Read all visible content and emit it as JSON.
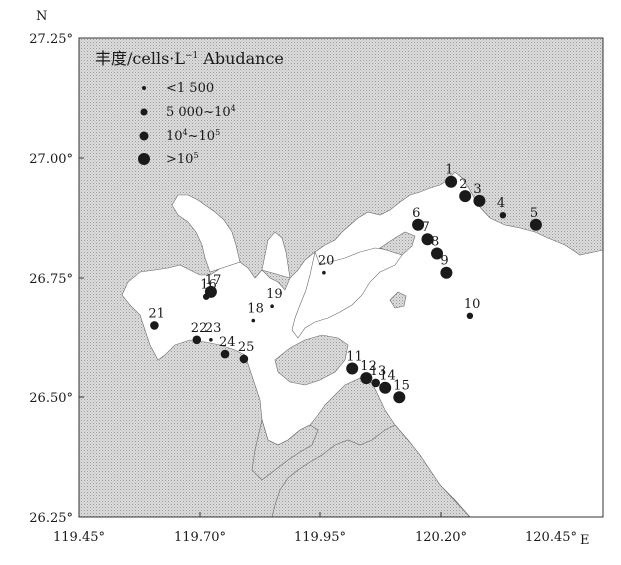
{
  "compass": {
    "north": "N",
    "east": "E"
  },
  "axes": {
    "lat_ticks": [
      "27.25°",
      "27.00°",
      "26.75°",
      "26.50°",
      "26.25°"
    ],
    "lon_ticks": [
      "119.45°",
      "119.70°",
      "119.95°",
      "120.20°",
      "120.45°"
    ]
  },
  "legend": {
    "title_cn": "丰度",
    "title_unit": "/cells·L",
    "title_sup": "−1",
    "title_en": "Abudance",
    "items": [
      {
        "label": "<1 500"
      },
      {
        "label": "5 000~10",
        "sup": "4"
      },
      {
        "label": "10",
        "sup": "4",
        "label2": "~10",
        "sup2": "5"
      },
      {
        "label": ">10",
        "sup": "5"
      }
    ]
  },
  "stations": [
    {
      "id": "1",
      "lon": 120.24,
      "lat": 26.95,
      "level": 3
    },
    {
      "id": "2",
      "lon": 120.27,
      "lat": 26.92,
      "level": 3
    },
    {
      "id": "3",
      "lon": 120.3,
      "lat": 26.91,
      "level": 3
    },
    {
      "id": "4",
      "lon": 120.35,
      "lat": 26.88,
      "level": 1
    },
    {
      "id": "5",
      "lon": 120.42,
      "lat": 26.86,
      "level": 3
    },
    {
      "id": "6",
      "lon": 120.17,
      "lat": 26.86,
      "level": 3
    },
    {
      "id": "7",
      "lon": 120.19,
      "lat": 26.83,
      "level": 3
    },
    {
      "id": "8",
      "lon": 120.21,
      "lat": 26.8,
      "level": 3
    },
    {
      "id": "9",
      "lon": 120.23,
      "lat": 26.76,
      "level": 3
    },
    {
      "id": "10",
      "lon": 120.28,
      "lat": 26.67,
      "level": 1
    },
    {
      "id": "11",
      "lon": 120.03,
      "lat": 26.56,
      "level": 3
    },
    {
      "id": "12",
      "lon": 120.06,
      "lat": 26.54,
      "level": 3
    },
    {
      "id": "13",
      "lon": 120.08,
      "lat": 26.53,
      "level": 2
    },
    {
      "id": "14",
      "lon": 120.1,
      "lat": 26.52,
      "level": 3
    },
    {
      "id": "15",
      "lon": 120.13,
      "lat": 26.5,
      "level": 3
    },
    {
      "id": "16",
      "lon": 119.72,
      "lat": 26.71,
      "level": 1
    },
    {
      "id": "17",
      "lon": 119.73,
      "lat": 26.72,
      "level": 3
    },
    {
      "id": "18",
      "lon": 119.82,
      "lat": 26.66,
      "level": 0
    },
    {
      "id": "19",
      "lon": 119.86,
      "lat": 26.69,
      "level": 0
    },
    {
      "id": "20",
      "lon": 119.97,
      "lat": 26.76,
      "level": 0
    },
    {
      "id": "21",
      "lon": 119.61,
      "lat": 26.65,
      "level": 2
    },
    {
      "id": "22",
      "lon": 119.7,
      "lat": 26.62,
      "level": 2
    },
    {
      "id": "23",
      "lon": 119.73,
      "lat": 26.62,
      "level": 0
    },
    {
      "id": "24",
      "lon": 119.76,
      "lat": 26.59,
      "level": 2
    },
    {
      "id": "25",
      "lon": 119.8,
      "lat": 26.58,
      "level": 2
    }
  ],
  "colors": {
    "land": "#d0d0d0",
    "sea": "#ffffff",
    "dot": "#1a1a1a",
    "frame": "#333333"
  }
}
